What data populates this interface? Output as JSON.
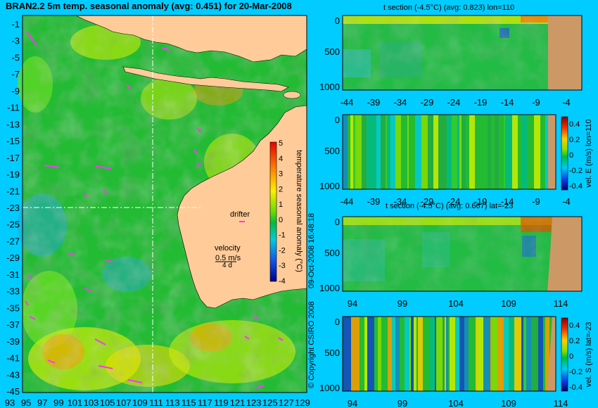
{
  "chart_data": [
    {
      "type": "heatmap",
      "title": "BRAN2.2 5m temp. seasonal anomaly (avg: 0.451) for 20-Mar-2008",
      "x_ticks": [
        "93",
        "95",
        "97",
        "99",
        "101",
        "103",
        "105",
        "107",
        "109",
        "111",
        "113",
        "115",
        "117",
        "119",
        "121",
        "123",
        "125",
        "127",
        "129"
      ],
      "y_ticks": [
        "-1",
        "-3",
        "-5",
        "-7",
        "-9",
        "-11",
        "-13",
        "-15",
        "-17",
        "-19",
        "-21",
        "-23",
        "-25",
        "-27",
        "-29",
        "-31",
        "-33",
        "-35",
        "-37",
        "-39",
        "-41",
        "-43",
        "-45"
      ],
      "xlim": [
        93,
        130
      ],
      "ylim": [
        -45,
        0
      ],
      "colorbar": {
        "label": "temperature seasonal anomaly (°C)",
        "ticks": [
          "5",
          "4",
          "3",
          "2",
          "1",
          "0",
          "-1",
          "-2",
          "-3",
          "-4"
        ],
        "range": [
          -4,
          5
        ]
      },
      "annotations": {
        "drifter": "drifter",
        "velocity": "velocity",
        "velocity_scale": "0.5 m/s",
        "velocity_arrow": "4 d"
      },
      "section_lines": {
        "lon": 110,
        "lat": -23
      }
    },
    {
      "type": "heatmap",
      "title": "t section (-4.5°C) (avg: 0.823) lon=110",
      "x_ticks": [
        "-44",
        "-39",
        "-34",
        "-29",
        "-24",
        "-19",
        "-14",
        "-9",
        "-4"
      ],
      "y_ticks": [
        "0",
        "500",
        "1000"
      ]
    },
    {
      "type": "heatmap",
      "title": "",
      "x_ticks": [
        "-44",
        "-39",
        "-34",
        "-29",
        "-24",
        "-19",
        "-14",
        "-9",
        "-4"
      ],
      "y_ticks": [
        "0",
        "500",
        "1000"
      ],
      "colorbar": {
        "label": "vel. E (m/s) lon=110",
        "ticks": [
          "0.4",
          "0.2",
          "0",
          "-0.2",
          "-0.4"
        ],
        "range": [
          -0.4,
          0.4
        ]
      }
    },
    {
      "type": "heatmap",
      "title": "t section (-4.5°C) (avg: 0.667) lat=-23",
      "x_ticks": [
        "94",
        "99",
        "104",
        "109",
        "114"
      ],
      "y_ticks": [
        "0",
        "500",
        "1000"
      ]
    },
    {
      "type": "heatmap",
      "title": "",
      "x_ticks": [
        "94",
        "99",
        "104",
        "109",
        "114"
      ],
      "y_ticks": [
        "0",
        "500",
        "1000"
      ],
      "colorbar": {
        "label": "vel. S (m/s) lat=-23",
        "ticks": [
          "0.4",
          "0.2",
          "0",
          "-0.2",
          "-0.4"
        ],
        "range": [
          -0.4,
          0.4
        ]
      }
    }
  ],
  "side_text": {
    "timestamp": "09-Oct-2008 16:48:18",
    "copyright": "© Copyright CSIRO 2008"
  }
}
